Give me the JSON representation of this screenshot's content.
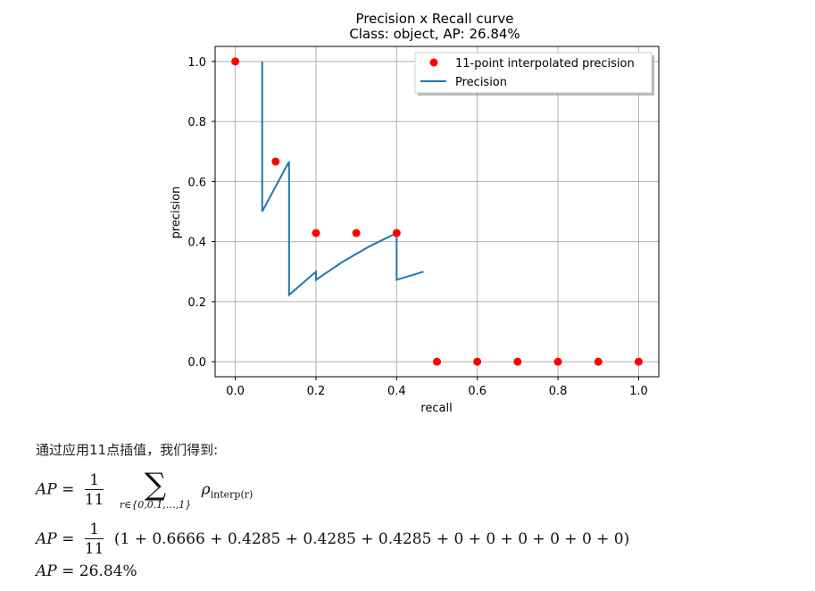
{
  "chart_data": {
    "type": "line+scatter",
    "title": "Precision x Recall curve",
    "subtitle": "Class: object, AP: 26.84%",
    "xlabel": "recall",
    "ylabel": "precision",
    "xlim": [
      -0.05,
      1.05
    ],
    "ylim": [
      -0.05,
      1.05
    ],
    "xticks": [
      "0.0",
      "0.2",
      "0.4",
      "0.6",
      "0.8",
      "1.0"
    ],
    "yticks": [
      "0.0",
      "0.2",
      "0.4",
      "0.6",
      "0.8",
      "1.0"
    ],
    "grid": true,
    "legend_position": "top-right",
    "series": [
      {
        "name": "11-point interpolated precision",
        "type": "scatter",
        "color": "#ff0000",
        "x": [
          0.0,
          0.1,
          0.2,
          0.3,
          0.4,
          0.5,
          0.6,
          0.7,
          0.8,
          0.9,
          1.0
        ],
        "y": [
          1.0,
          0.6666,
          0.4285,
          0.4285,
          0.4285,
          0,
          0,
          0,
          0,
          0,
          0
        ]
      },
      {
        "name": "Precision",
        "type": "line",
        "color": "#1f77b4",
        "x": [
          0.0667,
          0.0667,
          0.1333,
          0.1333,
          0.2,
          0.2,
          0.2667,
          0.3333,
          0.4,
          0.4,
          0.4667
        ],
        "y": [
          1.0,
          0.5,
          0.6667,
          0.2222,
          0.3,
          0.2727,
          0.3333,
          0.3846,
          0.4286,
          0.2727,
          0.3
        ]
      }
    ]
  },
  "caption": "通过应用11点插值，我们得到:",
  "formulas": {
    "ap_lhs": "AP",
    "equals": "=",
    "frac_num": "1",
    "frac_den": "11",
    "sigma": "∑",
    "sigma_sub": "r∈{0,0.1,…,1}",
    "rho": "ρ",
    "rho_sub": "interp(r)",
    "sum_terms": "(1 + 0.6666 + 0.4285 + 0.4285 + 0.4285 + 0 + 0 + 0 + 0 + 0 + 0)",
    "result": "26.84%"
  }
}
